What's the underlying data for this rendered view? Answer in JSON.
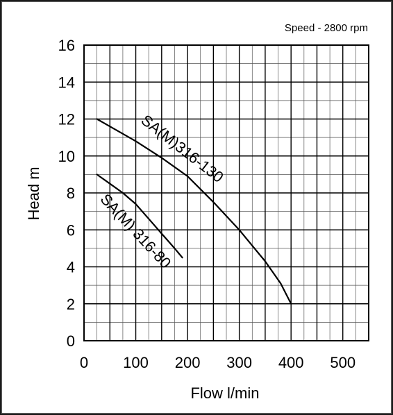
{
  "chart_data": {
    "type": "line",
    "annotation": "Speed - 2800 rpm",
    "xlabel": "Flow l/min",
    "ylabel": "Head m",
    "xlim": [
      0,
      550
    ],
    "ylim": [
      0,
      16
    ],
    "x_ticks": [
      0,
      100,
      200,
      300,
      400,
      500
    ],
    "y_ticks": [
      0,
      2,
      4,
      6,
      8,
      10,
      12,
      14,
      16
    ],
    "grid": true,
    "series": [
      {
        "name": "SA(M)316-130",
        "x": [
          25,
          50,
          100,
          150,
          200,
          250,
          300,
          350,
          380,
          400
        ],
        "y": [
          12.0,
          11.6,
          10.8,
          9.9,
          8.9,
          7.5,
          6.0,
          4.3,
          3.1,
          2.0
        ],
        "color": "#000000"
      },
      {
        "name": "SA(M) 316-80",
        "x": [
          25,
          50,
          75,
          100,
          125,
          150,
          175,
          190
        ],
        "y": [
          9.0,
          8.5,
          8.0,
          7.4,
          6.6,
          5.8,
          5.0,
          4.5
        ],
        "color": "#000000"
      }
    ]
  }
}
